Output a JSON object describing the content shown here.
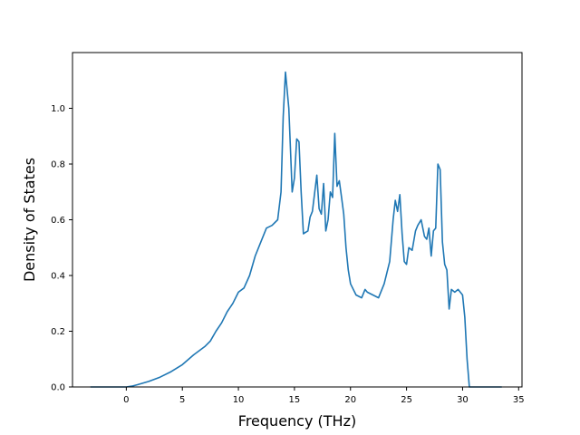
{
  "chart_data": {
    "type": "line",
    "title": "",
    "xlabel": "Frequency (THz)",
    "ylabel": "Density of States",
    "xlim": [
      -4.8,
      35.3
    ],
    "ylim": [
      0,
      1.2
    ],
    "xticks": [
      0,
      5,
      10,
      15,
      20,
      25,
      30,
      35
    ],
    "yticks": [
      0.0,
      0.2,
      0.4,
      0.6,
      0.8,
      1.0
    ],
    "xtick_labels": [
      "0",
      "5",
      "10",
      "15",
      "20",
      "25",
      "30",
      "35"
    ],
    "ytick_labels": [
      "0.0",
      "0.2",
      "0.4",
      "0.6",
      "0.8",
      "1.0"
    ],
    "grid": false,
    "legend": "none",
    "series": [
      {
        "color": "#1f77b4",
        "x": [
          -3.2,
          -2.0,
          -1.0,
          0.0,
          0.5,
          1.0,
          2.0,
          3.0,
          4.0,
          5.0,
          6.0,
          7.0,
          7.5,
          8.0,
          8.5,
          9.0,
          9.5,
          10.0,
          10.5,
          11.0,
          11.5,
          12.0,
          12.5,
          13.0,
          13.5,
          13.8,
          14.0,
          14.2,
          14.5,
          14.8,
          15.0,
          15.2,
          15.4,
          15.6,
          15.8,
          16.0,
          16.2,
          16.4,
          16.6,
          17.0,
          17.2,
          17.4,
          17.6,
          17.8,
          18.0,
          18.2,
          18.4,
          18.6,
          18.8,
          19.0,
          19.2,
          19.4,
          19.6,
          19.8,
          20.0,
          20.5,
          21.0,
          21.3,
          21.5,
          22.0,
          22.5,
          23.0,
          23.5,
          23.8,
          24.0,
          24.2,
          24.4,
          24.6,
          24.8,
          25.0,
          25.2,
          25.5,
          25.8,
          26.0,
          26.3,
          26.6,
          26.8,
          27.0,
          27.2,
          27.4,
          27.6,
          27.8,
          28.0,
          28.2,
          28.4,
          28.6,
          28.8,
          29.0,
          29.3,
          29.6,
          30.0,
          30.2,
          30.4,
          30.6,
          31.0,
          32.0,
          33.5
        ],
        "y": [
          0.0,
          0.0,
          0.0,
          0.0,
          0.003,
          0.008,
          0.02,
          0.035,
          0.055,
          0.08,
          0.115,
          0.145,
          0.165,
          0.2,
          0.23,
          0.27,
          0.3,
          0.34,
          0.355,
          0.4,
          0.47,
          0.52,
          0.57,
          0.58,
          0.6,
          0.7,
          0.97,
          1.13,
          1.0,
          0.7,
          0.75,
          0.89,
          0.88,
          0.7,
          0.55,
          0.555,
          0.56,
          0.61,
          0.63,
          0.76,
          0.64,
          0.62,
          0.73,
          0.56,
          0.6,
          0.7,
          0.68,
          0.91,
          0.72,
          0.74,
          0.68,
          0.62,
          0.5,
          0.42,
          0.37,
          0.33,
          0.32,
          0.35,
          0.34,
          0.33,
          0.32,
          0.37,
          0.45,
          0.6,
          0.67,
          0.63,
          0.69,
          0.55,
          0.45,
          0.44,
          0.5,
          0.49,
          0.56,
          0.58,
          0.6,
          0.54,
          0.53,
          0.57,
          0.47,
          0.56,
          0.57,
          0.8,
          0.78,
          0.52,
          0.44,
          0.42,
          0.28,
          0.35,
          0.34,
          0.35,
          0.33,
          0.25,
          0.1,
          0.0,
          0.0,
          0.0,
          0.0
        ]
      }
    ]
  }
}
